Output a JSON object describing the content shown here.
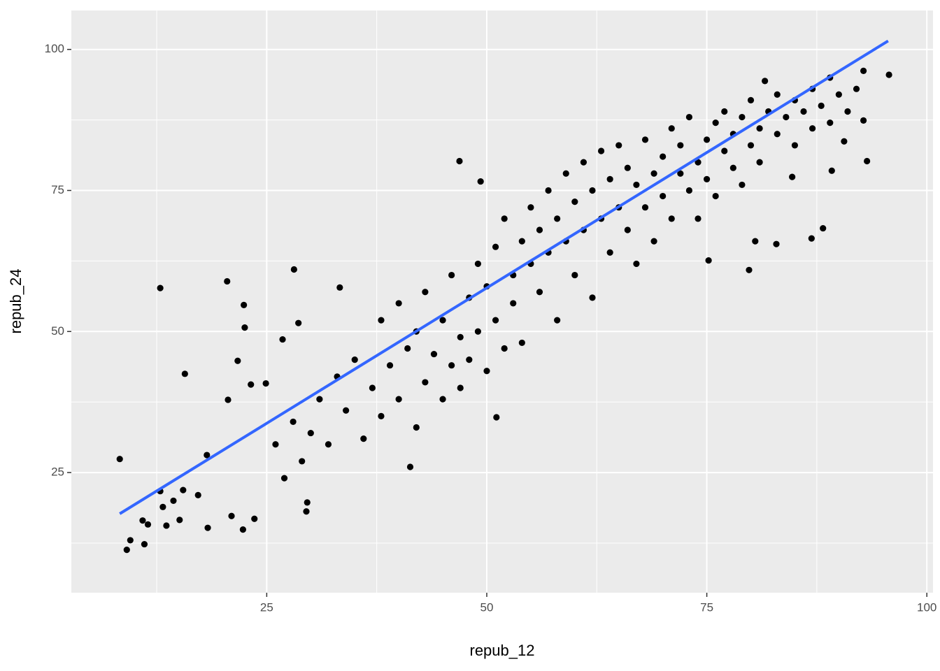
{
  "chart_data": {
    "type": "scatter",
    "x_label": "repub_12",
    "y_label": "repub_24",
    "xlim": [
      2.8,
      100.7
    ],
    "ylim": [
      3.7,
      106.9
    ],
    "xticks": [
      25,
      50,
      75,
      100
    ],
    "yticks": [
      25,
      50,
      75,
      100
    ],
    "grid": true,
    "color": "#000000",
    "x": [
      8.3,
      9.1,
      9.5,
      11.1,
      10.9,
      11.5,
      12.9,
      15.7,
      20.5,
      22.4,
      22.5,
      28.1,
      33.3,
      46.9,
      49.3,
      41.3,
      51.1,
      81.6,
      95.7,
      92.8,
      93.2,
      88.2,
      79.8,
      82.9,
      80.5,
      75.2,
      89.2,
      84.7,
      86.9,
      90.6,
      92.8,
      29.5,
      22.3,
      18.3,
      13.6,
      15.1,
      21.0,
      23.6,
      17.2,
      15.5,
      14.4,
      13.2,
      12.9,
      18.2,
      20.6,
      21.7,
      23.2,
      24.9,
      26.8,
      28.6,
      29.6,
      26,
      27,
      28,
      29,
      30,
      31,
      32,
      33,
      34,
      35,
      36,
      37,
      38,
      38,
      39,
      40,
      40,
      41,
      42,
      42,
      43,
      43,
      44,
      45,
      45,
      46,
      46,
      47,
      47,
      48,
      48,
      49,
      49,
      50,
      50,
      51,
      51,
      52,
      52,
      53,
      53,
      54,
      54,
      55,
      55,
      56,
      56,
      57,
      57,
      58,
      58,
      59,
      59,
      60,
      60,
      61,
      61,
      62,
      62,
      63,
      63,
      64,
      64,
      65,
      65,
      66,
      66,
      67,
      67,
      68,
      68,
      69,
      69,
      70,
      70,
      71,
      71,
      72,
      72,
      73,
      73,
      74,
      74,
      75,
      75,
      76,
      76,
      77,
      77,
      78,
      78,
      79,
      79,
      80,
      80,
      81,
      81,
      82,
      83,
      83,
      84,
      85,
      85,
      86,
      87,
      87,
      88,
      89,
      89,
      90,
      91,
      92
    ],
    "values": [
      27.4,
      11.3,
      13.0,
      12.3,
      16.5,
      15.8,
      57.7,
      42.5,
      58.9,
      54.7,
      50.7,
      61.0,
      57.8,
      80.2,
      76.6,
      26.0,
      34.8,
      94.4,
      95.5,
      96.2,
      80.2,
      68.3,
      60.9,
      65.5,
      66.0,
      62.6,
      78.5,
      77.4,
      66.5,
      83.7,
      87.4,
      18.1,
      14.9,
      15.2,
      15.6,
      16.6,
      17.3,
      16.8,
      21.0,
      21.9,
      20.0,
      18.9,
      21.7,
      28.1,
      37.9,
      44.8,
      40.6,
      40.8,
      48.6,
      51.5,
      19.7,
      30,
      24,
      34,
      27,
      32,
      38,
      30,
      42,
      36,
      45,
      31,
      40,
      35,
      52,
      44,
      38,
      55,
      47,
      33,
      50,
      41,
      57,
      46,
      38,
      52,
      44,
      60,
      49,
      40,
      56,
      45,
      62,
      50,
      43,
      58,
      65,
      52,
      47,
      70,
      60,
      55,
      66,
      48,
      72,
      62,
      57,
      68,
      75,
      64,
      52,
      70,
      78,
      66,
      60,
      73,
      80,
      68,
      56,
      75,
      70,
      82,
      64,
      77,
      72,
      83,
      68,
      79,
      62,
      76,
      84,
      72,
      78,
      66,
      81,
      74,
      86,
      70,
      78,
      83,
      75,
      88,
      80,
      70,
      84,
      77,
      87,
      74,
      82,
      89,
      79,
      85,
      88,
      76,
      83,
      91,
      86,
      80,
      89,
      85,
      92,
      88,
      83,
      91,
      89,
      93,
      86,
      90,
      95,
      87,
      92,
      89,
      93
    ],
    "fit": {
      "x": [
        8.3,
        95.6
      ],
      "values": [
        17.7,
        101.5
      ],
      "color": "#3366ff"
    }
  }
}
